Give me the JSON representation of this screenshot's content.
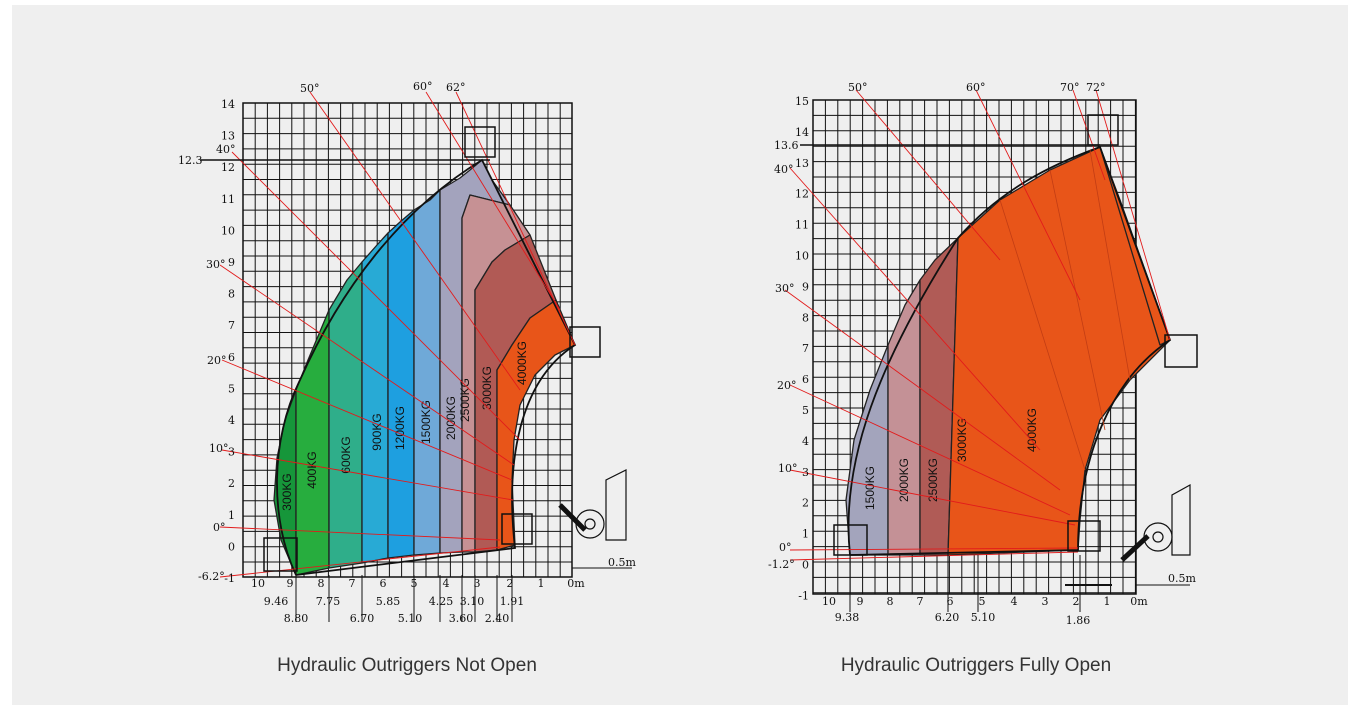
{
  "charts": [
    {
      "id": "left",
      "caption": "Hydraulic Outriggers Not Open",
      "y_ticks": [
        "14",
        "13",
        "12",
        "11",
        "10",
        "9",
        "8",
        "7",
        "6",
        "5",
        "4",
        "3",
        "2",
        "1",
        "0",
        "-1"
      ],
      "x_ticks": [
        "10",
        "9",
        "8",
        "7",
        "6",
        "5",
        "4",
        "3",
        "2",
        "1",
        "0m"
      ],
      "height_label": "12.3",
      "angles": [
        "50°",
        "60°",
        "62°",
        "40°",
        "30°",
        "20°",
        "10°",
        "0°",
        "-6.2°"
      ],
      "load_zones": [
        {
          "label": "300KG",
          "color": "#16963a"
        },
        {
          "label": "400KG",
          "color": "#27ad3e"
        },
        {
          "label": "600KG",
          "color": "#2fae8a"
        },
        {
          "label": "900KG",
          "color": "#28aad5"
        },
        {
          "label": "1200KG",
          "color": "#1e9fe0"
        },
        {
          "label": "1500KG",
          "color": "#6fa9d8"
        },
        {
          "label": "2000KG",
          "color": "#a3a3bd"
        },
        {
          "label": "2500KG",
          "color": "#c69194"
        },
        {
          "label": "3000KG",
          "color": "#b15a55"
        },
        {
          "label": "4000KG",
          "color": "#e85519"
        }
      ],
      "reach_top": [
        "9.46",
        "7.75",
        "5.85",
        "4.25",
        "3.10",
        "1.91"
      ],
      "reach_bottom": [
        "8.80",
        "6.70",
        "5.10",
        "3.60",
        "2.40"
      ],
      "side_label": "0.5m"
    },
    {
      "id": "right",
      "caption": "Hydraulic Outriggers Fully Open",
      "y_ticks": [
        "15",
        "14",
        "13",
        "12",
        "11",
        "10",
        "9",
        "8",
        "7",
        "6",
        "5",
        "4",
        "3",
        "2",
        "1",
        "0",
        "-1"
      ],
      "x_ticks": [
        "10",
        "9",
        "8",
        "7",
        "6",
        "5",
        "4",
        "3",
        "2",
        "1",
        "0m"
      ],
      "height_label": "13.6",
      "angles": [
        "50°",
        "60°",
        "70°",
        "72°",
        "40°",
        "30°",
        "20°",
        "10°",
        "0°",
        "-1.2°"
      ],
      "load_zones": [
        {
          "label": "1500KG",
          "color": "#a3a4bc"
        },
        {
          "label": "2000KG",
          "color": "#c49196"
        },
        {
          "label": "2500KG",
          "color": "#b05b56"
        },
        {
          "label": "3000KG",
          "color": "#e85519"
        },
        {
          "label": "4000KG",
          "color": "#e85519"
        }
      ],
      "reach_top": [
        "9.38",
        "6.20",
        "5.10"
      ],
      "reach_bottom": [
        "1.86"
      ],
      "side_label": "0.5m"
    }
  ]
}
